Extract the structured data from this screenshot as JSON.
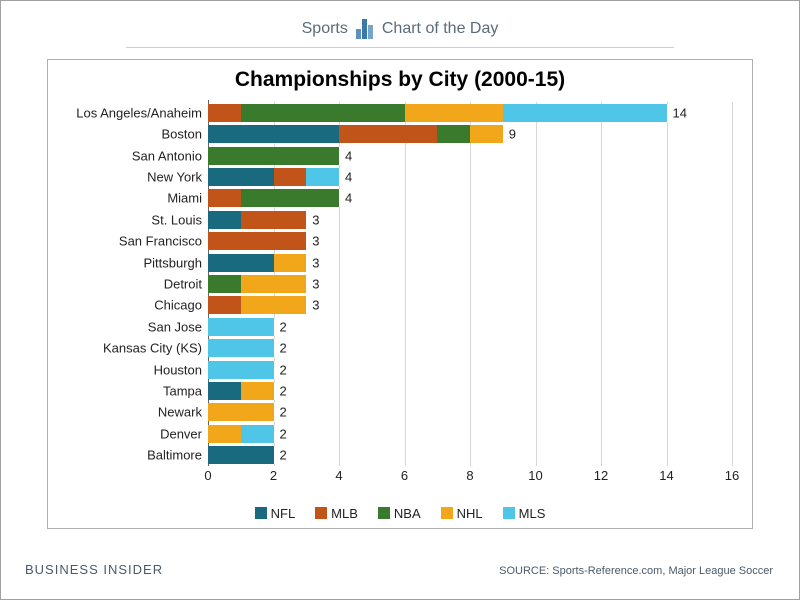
{
  "brand": {
    "left": "Sports",
    "right": "Chart of the Day"
  },
  "chart": {
    "type": "stacked-horizontal-bar",
    "title": "Championships by City (2000-15)",
    "xlim": [
      0,
      16
    ],
    "xtick_step": 2,
    "xticks": [
      0,
      2,
      4,
      6,
      8,
      10,
      12,
      14,
      16
    ],
    "grid_color": "#d6d6d6",
    "background_color": "#ffffff",
    "axis_color": "#666666",
    "label_fontsize": 13,
    "title_fontsize": 21,
    "series": [
      {
        "key": "NFL",
        "label": "NFL",
        "color": "#1a6a7f"
      },
      {
        "key": "MLB",
        "label": "MLB",
        "color": "#c15418"
      },
      {
        "key": "NBA",
        "label": "NBA",
        "color": "#3a7a2c"
      },
      {
        "key": "NHL",
        "label": "NHL",
        "color": "#f2a71a"
      },
      {
        "key": "MLS",
        "label": "MLS",
        "color": "#4fc5e8"
      }
    ],
    "rows": [
      {
        "label": "Los Angeles/Anaheim",
        "values": {
          "NFL": 0,
          "MLB": 1,
          "NBA": 5,
          "NHL": 3,
          "MLS": 5
        },
        "total": 14
      },
      {
        "label": "Boston",
        "values": {
          "NFL": 4,
          "MLB": 3,
          "NBA": 1,
          "NHL": 1,
          "MLS": 0
        },
        "total": 9
      },
      {
        "label": "San Antonio",
        "values": {
          "NFL": 0,
          "MLB": 0,
          "NBA": 4,
          "NHL": 0,
          "MLS": 0
        },
        "total": 4
      },
      {
        "label": "New York",
        "values": {
          "NFL": 2,
          "MLB": 1,
          "NBA": 0,
          "NHL": 0,
          "MLS": 1
        },
        "total": 4
      },
      {
        "label": "Miami",
        "values": {
          "NFL": 0,
          "MLB": 1,
          "NBA": 3,
          "NHL": 0,
          "MLS": 0
        },
        "total": 4
      },
      {
        "label": "St. Louis",
        "values": {
          "NFL": 1,
          "MLB": 2,
          "NBA": 0,
          "NHL": 0,
          "MLS": 0
        },
        "total": 3
      },
      {
        "label": "San Francisco",
        "values": {
          "NFL": 0,
          "MLB": 3,
          "NBA": 0,
          "NHL": 0,
          "MLS": 0
        },
        "total": 3
      },
      {
        "label": "Pittsburgh",
        "values": {
          "NFL": 2,
          "MLB": 0,
          "NBA": 0,
          "NHL": 1,
          "MLS": 0
        },
        "total": 3
      },
      {
        "label": "Detroit",
        "values": {
          "NFL": 0,
          "MLB": 0,
          "NBA": 1,
          "NHL": 2,
          "MLS": 0
        },
        "total": 3
      },
      {
        "label": "Chicago",
        "values": {
          "NFL": 0,
          "MLB": 1,
          "NBA": 0,
          "NHL": 2,
          "MLS": 0
        },
        "total": 3
      },
      {
        "label": "San Jose",
        "values": {
          "NFL": 0,
          "MLB": 0,
          "NBA": 0,
          "NHL": 0,
          "MLS": 2
        },
        "total": 2
      },
      {
        "label": "Kansas City (KS)",
        "values": {
          "NFL": 0,
          "MLB": 0,
          "NBA": 0,
          "NHL": 0,
          "MLS": 2
        },
        "total": 2
      },
      {
        "label": "Houston",
        "values": {
          "NFL": 0,
          "MLB": 0,
          "NBA": 0,
          "NHL": 0,
          "MLS": 2
        },
        "total": 2
      },
      {
        "label": "Tampa",
        "values": {
          "NFL": 1,
          "MLB": 0,
          "NBA": 0,
          "NHL": 1,
          "MLS": 0
        },
        "total": 2
      },
      {
        "label": "Newark",
        "values": {
          "NFL": 0,
          "MLB": 0,
          "NBA": 0,
          "NHL": 2,
          "MLS": 0
        },
        "total": 2
      },
      {
        "label": "Denver",
        "values": {
          "NFL": 0,
          "MLB": 0,
          "NBA": 0,
          "NHL": 1,
          "MLS": 1
        },
        "total": 2
      },
      {
        "label": "Baltimore",
        "values": {
          "NFL": 2,
          "MLB": 0,
          "NBA": 0,
          "NHL": 0,
          "MLS": 0
        },
        "total": 2
      }
    ]
  },
  "footer": {
    "publisher_a": "BUSINESS",
    "publisher_b": "INSIDER",
    "source": "SOURCE: Sports-Reference.com, Major League Soccer"
  }
}
